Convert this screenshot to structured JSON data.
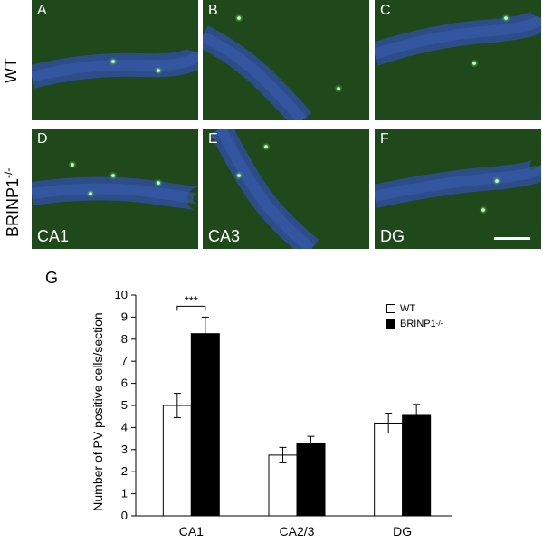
{
  "row_labels": {
    "wt": "WT",
    "ko": "BRINP1",
    "ko_sup": "-/-"
  },
  "panels": [
    {
      "letter": "A",
      "region": ""
    },
    {
      "letter": "B",
      "region": ""
    },
    {
      "letter": "C",
      "region": ""
    },
    {
      "letter": "D",
      "region": "CA1"
    },
    {
      "letter": "E",
      "region": "CA3"
    },
    {
      "letter": "F",
      "region": "DG"
    }
  ],
  "chart_letter": "G",
  "chart_data": {
    "type": "bar",
    "categories": [
      "CA1",
      "CA2/3",
      "DG"
    ],
    "ylabel": "Number of PV positive cells/section",
    "ylim": [
      0,
      10
    ],
    "yticks": [
      "0",
      "1",
      "2",
      "3",
      "4",
      "5",
      "6",
      "7",
      "8",
      "9",
      "10"
    ],
    "series": [
      {
        "name": "WT",
        "values": [
          5.0,
          2.75,
          4.2
        ],
        "errors": [
          0.55,
          0.35,
          0.45
        ],
        "color": "#ffffff"
      },
      {
        "name": "BRINP1",
        "name_sup": "-/-",
        "values": [
          8.25,
          3.3,
          4.55
        ],
        "errors": [
          0.75,
          0.3,
          0.5
        ],
        "color": "#000000"
      }
    ],
    "significance": {
      "category": "CA1",
      "label": "***"
    },
    "legend_position": "top-right"
  }
}
